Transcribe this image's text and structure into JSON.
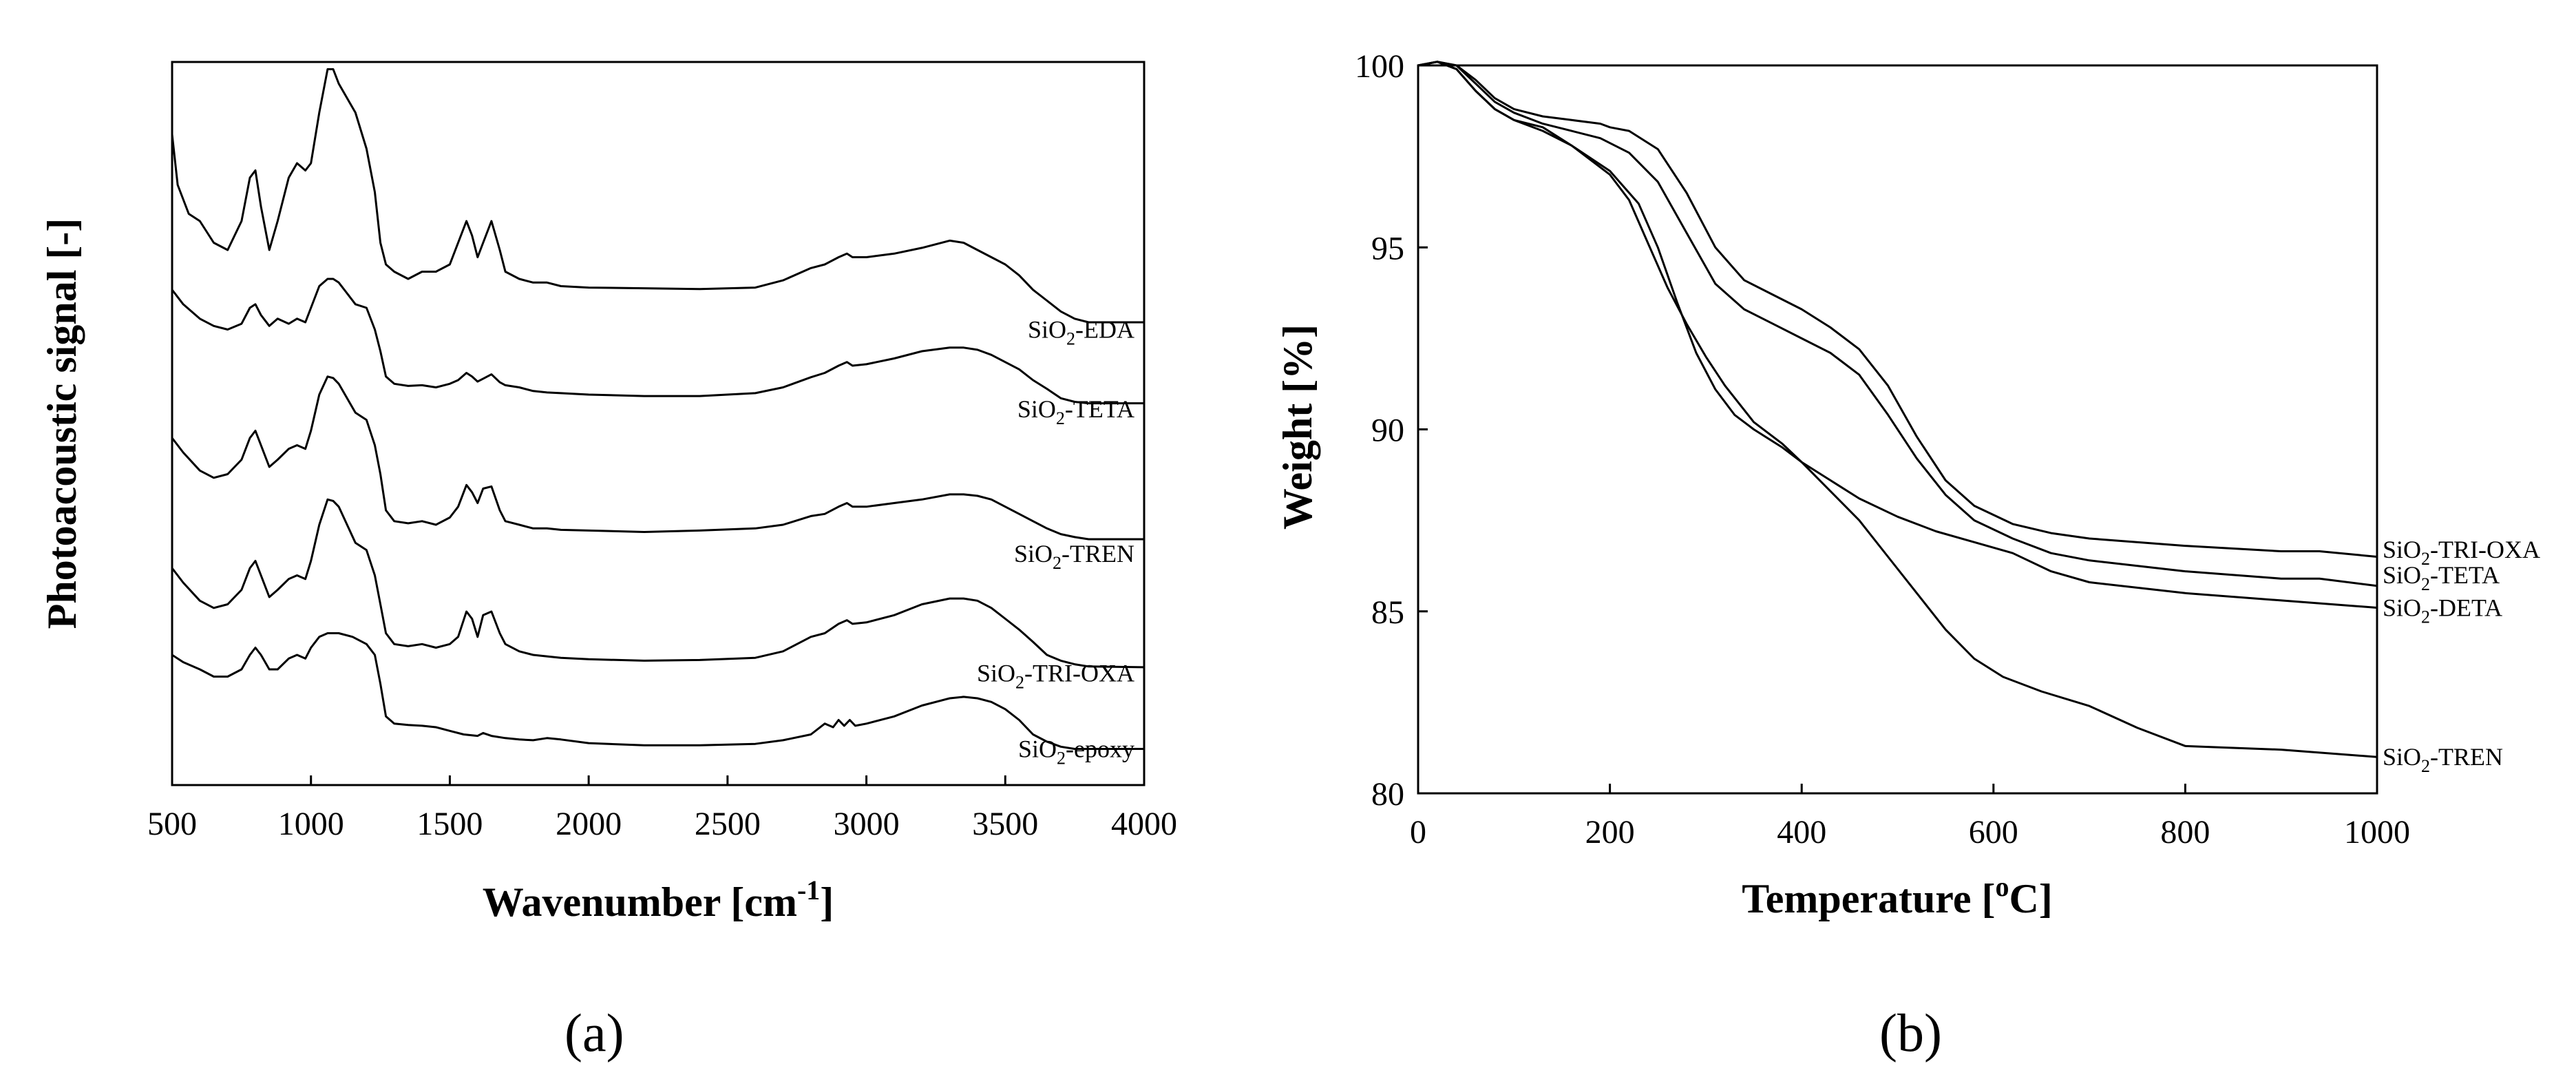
{
  "panel_labels": {
    "a": "(a)",
    "b": "(b)"
  },
  "chart_data": [
    {
      "panel": "a",
      "type": "line",
      "xlabel": "Wavenumber [cm-1]",
      "xlabel_main": "Wavenumber  [cm",
      "xlabel_sup": "-1",
      "xlabel_end": "]",
      "ylabel": "Photoacoustic  signal  [-]",
      "xlim": [
        500,
        4000
      ],
      "ylim": [
        0,
        100
      ],
      "xticks": [
        500,
        1000,
        1500,
        2000,
        2500,
        3000,
        3500,
        4000
      ],
      "series": [
        {
          "name": "SiO2-EDA",
          "label_main": "SiO",
          "label_sub": "2",
          "label_rest": "-EDA",
          "label_y": 63,
          "x": [
            500,
            520,
            560,
            600,
            650,
            700,
            750,
            780,
            800,
            820,
            850,
            880,
            920,
            950,
            980,
            1000,
            1030,
            1060,
            1080,
            1100,
            1130,
            1160,
            1200,
            1230,
            1250,
            1270,
            1300,
            1350,
            1400,
            1450,
            1500,
            1530,
            1560,
            1580,
            1600,
            1620,
            1650,
            1680,
            1700,
            1750,
            1800,
            1850,
            1900,
            2000,
            2200,
            2400,
            2600,
            2700,
            2800,
            2850,
            2900,
            2930,
            2950,
            3000,
            3100,
            3200,
            3300,
            3350,
            3400,
            3450,
            3500,
            3550,
            3600,
            3650,
            3700,
            3750,
            3800,
            4000
          ],
          "y": [
            90,
            83,
            79,
            78,
            75,
            74,
            78,
            84,
            85,
            80,
            74,
            78,
            84,
            86,
            85,
            86,
            93,
            99,
            99,
            97,
            95,
            93,
            88,
            82,
            75,
            72,
            71,
            70,
            71,
            71,
            72,
            75,
            78,
            76,
            73,
            75,
            78,
            74,
            71,
            70,
            69.5,
            69.5,
            69,
            68.8,
            68.7,
            68.6,
            68.8,
            69.8,
            71.5,
            72,
            73,
            73.5,
            73,
            73,
            73.5,
            74.3,
            75.3,
            75,
            74,
            73,
            72,
            70.5,
            68.5,
            67,
            65.5,
            64.5,
            64,
            64
          ]
        },
        {
          "name": "SiO2-TETA",
          "label_main": "SiO",
          "label_sub": "2",
          "label_rest": "-TETA",
          "label_y": 52,
          "x": [
            500,
            540,
            600,
            650,
            700,
            750,
            780,
            800,
            820,
            850,
            880,
            920,
            950,
            980,
            1000,
            1030,
            1060,
            1080,
            1100,
            1130,
            1160,
            1200,
            1230,
            1250,
            1270,
            1300,
            1350,
            1400,
            1450,
            1500,
            1530,
            1560,
            1580,
            1600,
            1620,
            1650,
            1680,
            1700,
            1750,
            1800,
            1850,
            1900,
            2000,
            2200,
            2400,
            2600,
            2700,
            2800,
            2850,
            2900,
            2930,
            2950,
            3000,
            3100,
            3200,
            3300,
            3350,
            3400,
            3450,
            3500,
            3550,
            3600,
            3650,
            3700,
            3750,
            3800,
            4000
          ],
          "y": [
            68.5,
            66.5,
            64.5,
            63.5,
            63,
            63.8,
            66,
            66.5,
            65,
            63.5,
            64.5,
            63.8,
            64.5,
            64,
            66,
            69,
            70,
            70,
            69.5,
            68,
            66.5,
            66,
            63,
            60,
            56.5,
            55.5,
            55.2,
            55.3,
            55,
            55.5,
            56,
            57,
            56.5,
            55.8,
            56.2,
            56.8,
            55.7,
            55.3,
            55,
            54.5,
            54.3,
            54.2,
            54,
            53.8,
            53.8,
            54.2,
            55,
            56.4,
            57,
            58,
            58.5,
            58,
            58.2,
            59,
            60,
            60.5,
            60.5,
            60.2,
            59.5,
            58.5,
            57.5,
            56,
            54.8,
            53.5,
            53,
            52.8,
            52.8
          ]
        },
        {
          "name": "SiO2-TREN",
          "label_main": "SiO",
          "label_sub": "2",
          "label_rest": "-TREN",
          "label_y": 32,
          "x": [
            500,
            540,
            600,
            650,
            700,
            750,
            780,
            800,
            820,
            850,
            880,
            920,
            950,
            980,
            1000,
            1030,
            1060,
            1080,
            1100,
            1130,
            1160,
            1200,
            1230,
            1250,
            1270,
            1300,
            1350,
            1400,
            1450,
            1500,
            1530,
            1560,
            1580,
            1600,
            1620,
            1650,
            1680,
            1700,
            1750,
            1800,
            1850,
            1900,
            2000,
            2200,
            2400,
            2600,
            2700,
            2800,
            2850,
            2900,
            2930,
            2950,
            3000,
            3100,
            3200,
            3300,
            3350,
            3400,
            3450,
            3500,
            3550,
            3600,
            3650,
            3700,
            3750,
            3800,
            4000
          ],
          "y": [
            48,
            46,
            43.5,
            42.5,
            43,
            45,
            48,
            49,
            47,
            44,
            45,
            46.5,
            47,
            46.5,
            49,
            54,
            56.5,
            56.3,
            55.5,
            53.5,
            51.5,
            50.5,
            47,
            43,
            38,
            36.5,
            36.2,
            36.5,
            36,
            37,
            38.5,
            41.5,
            40.5,
            39,
            41,
            41.3,
            38,
            36.5,
            36,
            35.5,
            35.5,
            35.3,
            35.2,
            35,
            35.2,
            35.5,
            36,
            37.2,
            37.5,
            38.5,
            39,
            38.5,
            38.5,
            39,
            39.5,
            40.2,
            40.2,
            40,
            39.5,
            38.5,
            37.5,
            36.5,
            35.5,
            34.7,
            34.3,
            34,
            34
          ]
        },
        {
          "name": "SiO2-TRI-OXA",
          "label_main": "SiO",
          "label_sub": "2",
          "label_rest": "-TRI-OXA",
          "label_y": 15.5,
          "x": [
            500,
            540,
            600,
            650,
            700,
            750,
            780,
            800,
            820,
            850,
            880,
            920,
            950,
            980,
            1000,
            1030,
            1060,
            1080,
            1100,
            1130,
            1160,
            1200,
            1230,
            1250,
            1270,
            1300,
            1350,
            1400,
            1450,
            1500,
            1530,
            1560,
            1580,
            1600,
            1620,
            1650,
            1680,
            1700,
            1750,
            1800,
            1850,
            1900,
            2000,
            2200,
            2400,
            2600,
            2700,
            2800,
            2850,
            2900,
            2930,
            2950,
            3000,
            3100,
            3200,
            3300,
            3350,
            3400,
            3450,
            3500,
            3550,
            3600,
            3650,
            3700,
            3750,
            3800,
            4000
          ],
          "y": [
            30,
            28,
            25.5,
            24.5,
            25,
            27,
            30,
            31,
            29,
            26,
            27,
            28.5,
            29,
            28.5,
            31,
            36,
            39.5,
            39.3,
            38.5,
            36,
            33.5,
            32.5,
            29,
            25,
            21,
            19.5,
            19.2,
            19.5,
            19,
            19.5,
            20.5,
            24,
            23,
            20.5,
            23.5,
            24,
            21,
            19.5,
            18.5,
            18,
            17.8,
            17.6,
            17.4,
            17.2,
            17.3,
            17.6,
            18.5,
            20.5,
            21,
            22.3,
            22.8,
            22.3,
            22.5,
            23.5,
            25,
            25.8,
            25.8,
            25.5,
            24.5,
            23,
            21.5,
            19.8,
            18,
            17.2,
            16.7,
            16.4,
            16.3
          ]
        },
        {
          "name": "SiO2-epoxy",
          "label_main": "SiO",
          "label_sub": "2",
          "label_rest": "-epoxy",
          "label_y": 5,
          "x": [
            500,
            540,
            600,
            650,
            700,
            750,
            780,
            800,
            820,
            850,
            880,
            920,
            950,
            980,
            1000,
            1030,
            1060,
            1100,
            1150,
            1200,
            1230,
            1250,
            1270,
            1300,
            1350,
            1400,
            1450,
            1500,
            1550,
            1600,
            1620,
            1650,
            1700,
            1750,
            1800,
            1850,
            1900,
            2000,
            2200,
            2400,
            2600,
            2700,
            2800,
            2850,
            2880,
            2900,
            2920,
            2940,
            2960,
            3000,
            3100,
            3200,
            3300,
            3350,
            3400,
            3450,
            3500,
            3550,
            3600,
            3650,
            3700,
            3750,
            3800,
            4000
          ],
          "y": [
            18,
            17,
            16,
            15,
            15,
            16,
            18,
            19,
            18,
            16,
            16,
            17.5,
            18,
            17.5,
            19,
            20.5,
            21,
            21,
            20.5,
            19.5,
            18,
            14,
            9.5,
            8.5,
            8.3,
            8.2,
            8,
            7.5,
            7,
            6.8,
            7.2,
            6.8,
            6.5,
            6.3,
            6.2,
            6.5,
            6.3,
            5.8,
            5.5,
            5.5,
            5.7,
            6.2,
            7,
            8.5,
            8,
            9,
            8.2,
            9,
            8.2,
            8.5,
            9.5,
            11,
            12,
            12.2,
            12,
            11.5,
            10.5,
            9,
            7,
            6,
            5.3,
            5,
            5,
            5
          ]
        }
      ]
    },
    {
      "panel": "b",
      "type": "line",
      "xlabel": "Temperature [oC]",
      "xlabel_main": "Temperature  [",
      "xlabel_sup": "o",
      "xlabel_end": "C]",
      "ylabel": "Weight  [%]",
      "xlim": [
        0,
        1000
      ],
      "ylim": [
        80,
        100
      ],
      "xticks": [
        0,
        200,
        400,
        600,
        800,
        1000
      ],
      "yticks": [
        80,
        85,
        90,
        95,
        100
      ],
      "series": [
        {
          "name": "SiO2-TRI-OXA",
          "label_main": "SiO",
          "label_sub": "2",
          "label_rest": "-TRI-OXA",
          "label_y": 86.7,
          "x": [
            0,
            20,
            40,
            60,
            80,
            100,
            130,
            160,
            190,
            200,
            220,
            250,
            280,
            310,
            340,
            370,
            400,
            430,
            460,
            490,
            520,
            550,
            580,
            620,
            660,
            700,
            800,
            900,
            940,
            1000
          ],
          "y": [
            100,
            100.1,
            100,
            99.6,
            99.1,
            98.8,
            98.6,
            98.5,
            98.4,
            98.3,
            98.2,
            97.7,
            96.5,
            95,
            94.1,
            93.7,
            93.3,
            92.8,
            92.2,
            91.2,
            89.8,
            88.6,
            87.9,
            87.4,
            87.15,
            87,
            86.8,
            86.65,
            86.65,
            86.5
          ]
        },
        {
          "name": "SiO2-TETA",
          "label_main": "SiO",
          "label_sub": "2",
          "label_rest": "-TETA",
          "label_y": 86.0,
          "x": [
            0,
            20,
            40,
            60,
            80,
            100,
            130,
            160,
            190,
            220,
            250,
            280,
            310,
            340,
            370,
            400,
            430,
            460,
            490,
            520,
            550,
            580,
            620,
            660,
            700,
            800,
            900,
            940,
            1000
          ],
          "y": [
            100,
            100.1,
            100,
            99.5,
            99,
            98.7,
            98.4,
            98.2,
            98,
            97.6,
            96.8,
            95.4,
            94,
            93.3,
            92.9,
            92.5,
            92.1,
            91.5,
            90.4,
            89.2,
            88.2,
            87.5,
            87,
            86.6,
            86.4,
            86.1,
            85.9,
            85.9,
            85.7
          ]
        },
        {
          "name": "SiO2-DETA",
          "label_main": "SiO",
          "label_sub": "2",
          "label_rest": "-DETA",
          "label_y": 85.1,
          "x": [
            0,
            20,
            40,
            60,
            80,
            100,
            130,
            160,
            200,
            230,
            250,
            270,
            290,
            310,
            330,
            350,
            380,
            400,
            430,
            460,
            500,
            540,
            580,
            620,
            660,
            700,
            800,
            900,
            1000
          ],
          "y": [
            100,
            100.1,
            99.9,
            99.3,
            98.8,
            98.5,
            98.2,
            97.8,
            97.1,
            96.2,
            95,
            93.5,
            92.1,
            91.1,
            90.4,
            90,
            89.5,
            89.1,
            88.6,
            88.1,
            87.6,
            87.2,
            86.9,
            86.6,
            86.1,
            85.8,
            85.5,
            85.3,
            85.1
          ]
        },
        {
          "name": "SiO2-TREN",
          "label_main": "SiO",
          "label_sub": "2",
          "label_rest": "-TREN",
          "label_y": 81.0,
          "x": [
            0,
            20,
            40,
            60,
            80,
            100,
            130,
            160,
            200,
            220,
            240,
            260,
            280,
            300,
            320,
            350,
            380,
            400,
            430,
            460,
            490,
            520,
            550,
            580,
            610,
            650,
            700,
            750,
            800,
            900,
            1000
          ],
          "y": [
            100,
            100.1,
            99.9,
            99.3,
            98.8,
            98.5,
            98.3,
            97.8,
            97,
            96.3,
            95.1,
            93.9,
            92.9,
            92,
            91.2,
            90.2,
            89.6,
            89.1,
            88.3,
            87.5,
            86.5,
            85.5,
            84.5,
            83.7,
            83.2,
            82.8,
            82.4,
            81.8,
            81.3,
            81.2,
            81
          ]
        }
      ]
    }
  ]
}
